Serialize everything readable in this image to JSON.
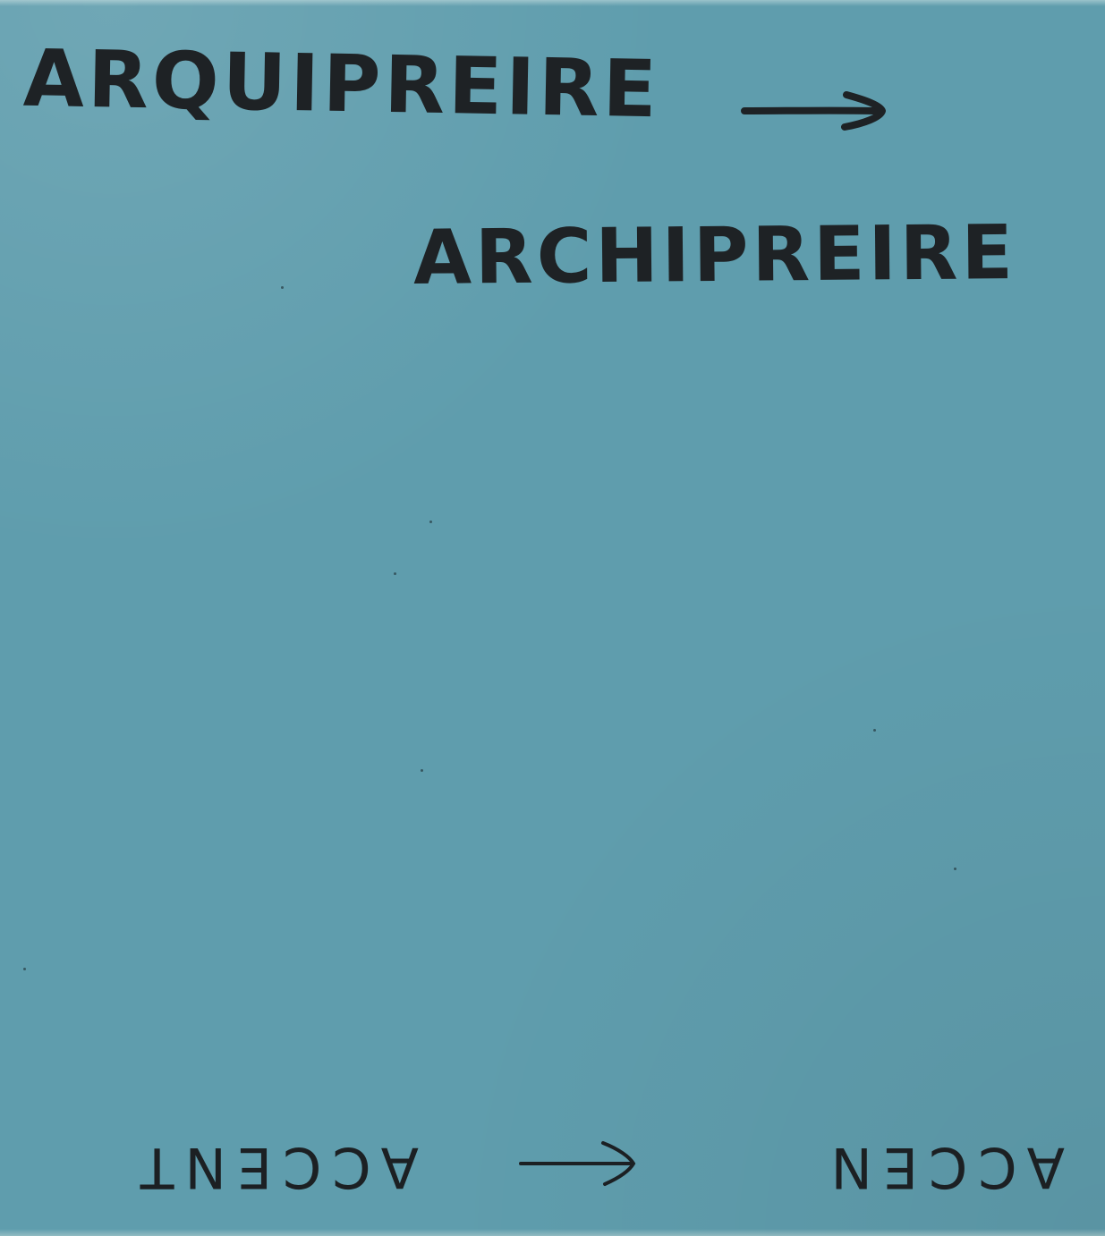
{
  "card": {
    "background_color": "#5f9dad",
    "line_1": {
      "text": "ARQUIPREIRE"
    },
    "line_2": {
      "text": "ARCHIPREIRE"
    },
    "arrow_icons": [
      "right-arrow-icon",
      "left-arrow-icon"
    ],
    "upside_down_note": {
      "left_word": "ACCEN",
      "right_word": "ACCENT"
    }
  }
}
